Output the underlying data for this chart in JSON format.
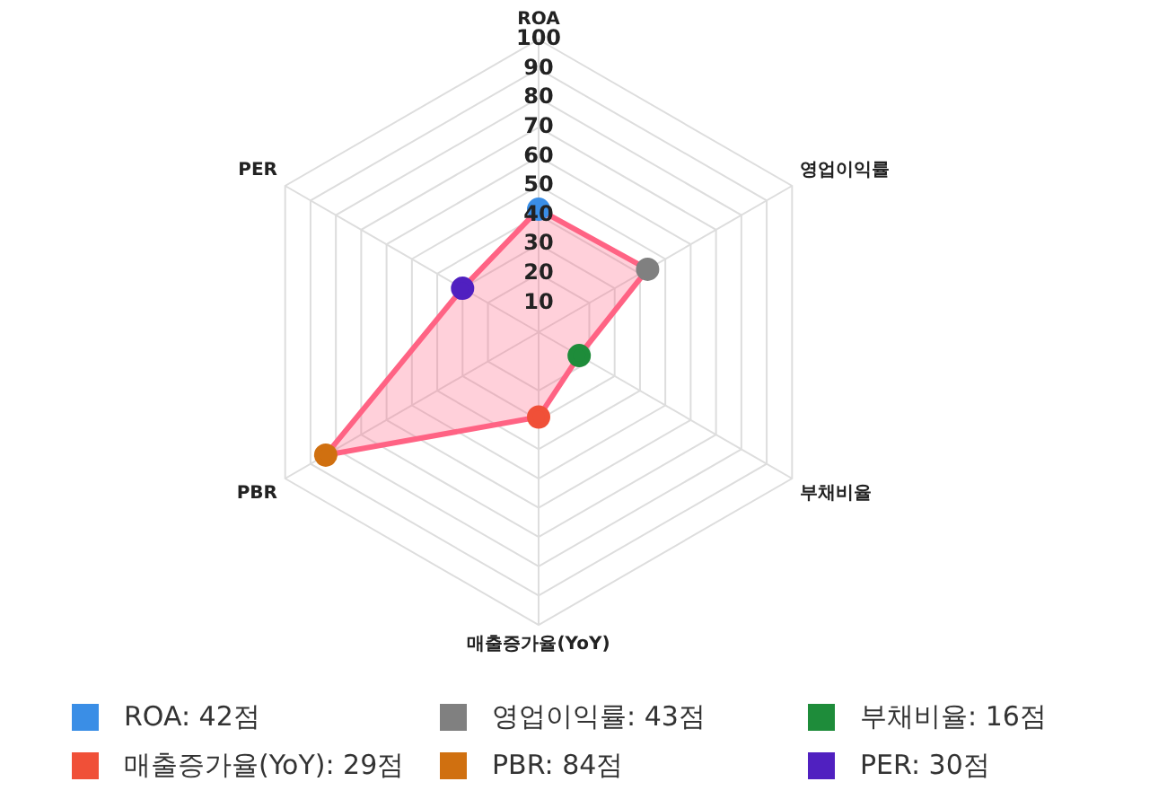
{
  "chart_data": {
    "type": "radar",
    "categories": [
      "ROA",
      "영업이익률",
      "부채비율",
      "매출증가율(YoY)",
      "PBR",
      "PER"
    ],
    "series": [
      {
        "color": "#ff6384",
        "values": [
          42,
          43,
          16,
          29,
          84,
          30
        ]
      }
    ],
    "colors": [
      "#3a8ee6",
      "#808080",
      "#1e8c3a",
      "#f05038",
      "#d07010",
      "#5020c0"
    ],
    "value_labels": [
      "ROA: 42점",
      "영업이익률: 43점",
      "부채비율: 16점",
      "매출증가율(YoY): 29점",
      "PBR: 84점",
      "PER: 30점"
    ],
    "ylim": [
      0,
      100
    ],
    "yticks": [
      10,
      20,
      30,
      40,
      50,
      60,
      70,
      80,
      90,
      100
    ],
    "grid": true,
    "marker": "circle"
  }
}
